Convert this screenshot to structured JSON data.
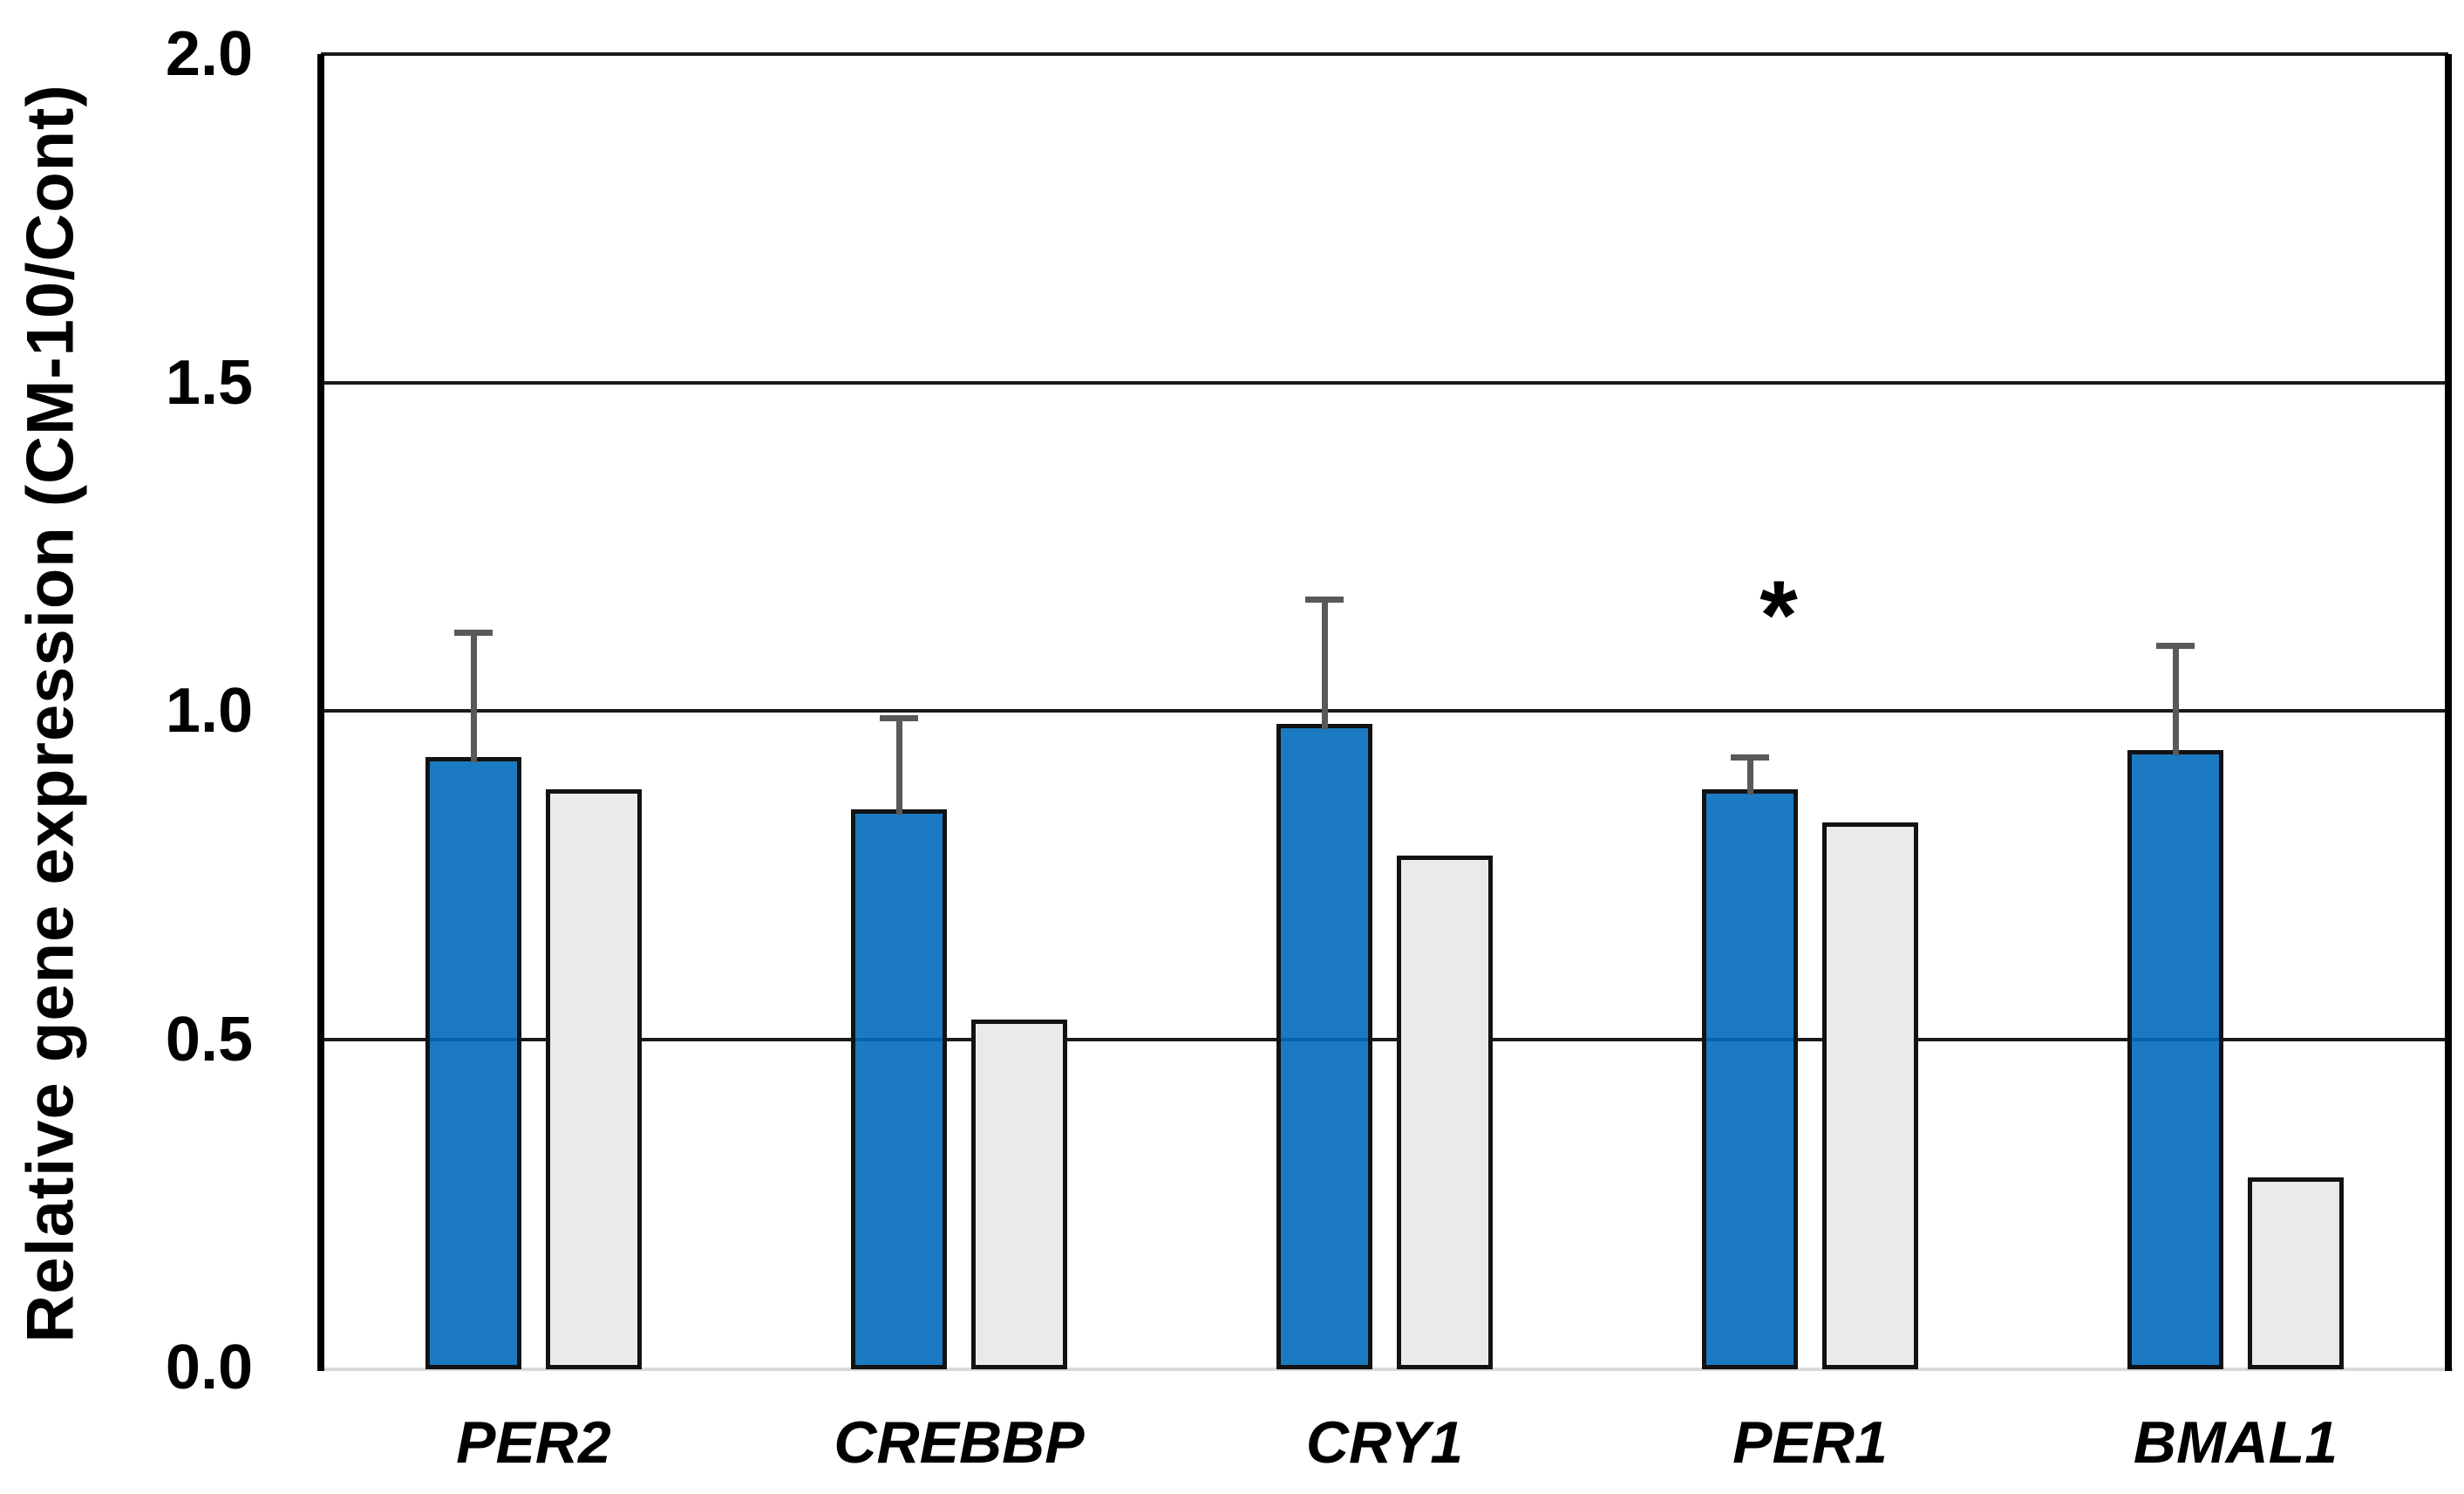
{
  "figure": {
    "background": "#FFFFFF",
    "description_colors": {
      "blue_bar_fill": "#1B7AC2",
      "gray_bar_fill": "#EAEAEA",
      "bar_outline": "#121212",
      "gridline": "#1A1A1A",
      "axis_line": "#000000",
      "x_baseline": "#D9D9D9",
      "error_bar": "#595959",
      "text": "#000000"
    }
  },
  "chart_data": {
    "type": "bar",
    "title": "",
    "ylabel": "Relative gene expression (CM-10/Cont)",
    "xlabel": "",
    "categories": [
      "PER2",
      "CREBBP",
      "CRY1",
      "PER1",
      "BMAL1"
    ],
    "series": [
      {
        "name": "blue",
        "color": "#1B7AC2",
        "values": [
          0.93,
          0.85,
          0.98,
          0.88,
          0.94
        ],
        "error_up": [
          0.19,
          0.14,
          0.19,
          0.05,
          0.16
        ]
      },
      {
        "name": "gray",
        "color": "#EAEAEA",
        "values": [
          0.88,
          0.53,
          0.78,
          0.83,
          0.29
        ],
        "error_up": [
          0,
          0,
          0,
          0,
          0
        ]
      }
    ],
    "ylim": [
      0,
      2
    ],
    "yticks": [
      0,
      0.5,
      1,
      1.5,
      2
    ],
    "ytick_labels": [
      "0.0",
      "0.5",
      "1.0",
      "1.5",
      "2.0"
    ],
    "grid": "horizontal",
    "legend": "none",
    "annotations": [
      {
        "text": "*",
        "category": "PER1",
        "value": 1.16
      }
    ]
  }
}
